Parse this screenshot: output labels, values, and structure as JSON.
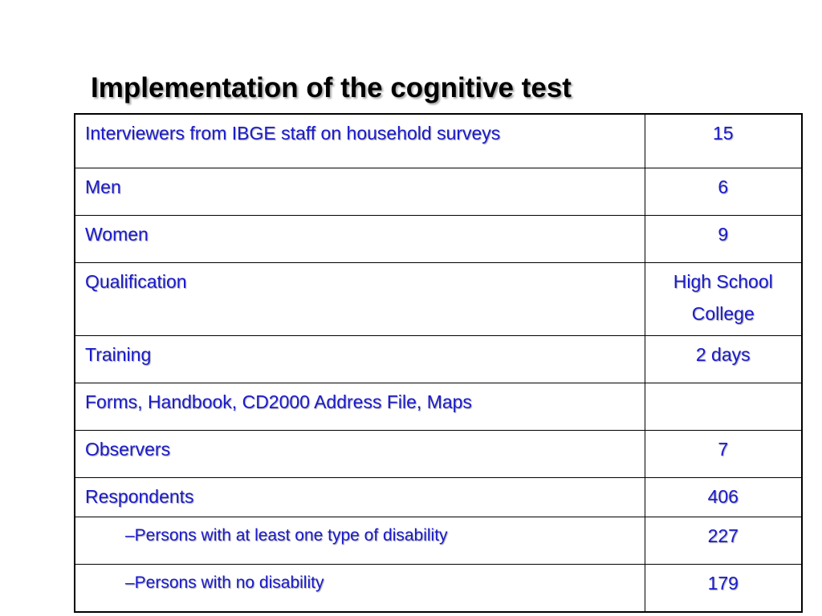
{
  "slide": {
    "title": "Implementation of the cognitive test"
  },
  "table": {
    "rows": [
      {
        "label": "Interviewers from IBGE staff on household surveys",
        "value": [
          "15"
        ]
      },
      {
        "label": "Men",
        "value": [
          "6"
        ]
      },
      {
        "label": "Women",
        "value": [
          "9"
        ]
      },
      {
        "label": "Qualification",
        "value": [
          "High School",
          "College"
        ]
      },
      {
        "label": "Training",
        "value": [
          "2 days"
        ]
      },
      {
        "label": "Forms, Handbook, CD2000 Address File, Maps",
        "value": [
          ""
        ]
      },
      {
        "label": "Observers",
        "value": [
          "7"
        ]
      },
      {
        "label": "Respondents",
        "value": [
          "406"
        ]
      },
      {
        "label": "–Persons with at least one type of disability",
        "value": [
          "227"
        ]
      },
      {
        "label": "–Persons with no disability",
        "value": [
          "179"
        ]
      }
    ]
  },
  "colors": {
    "text_blue": "#1a1acc",
    "title": "#000000",
    "border": "#000000"
  }
}
